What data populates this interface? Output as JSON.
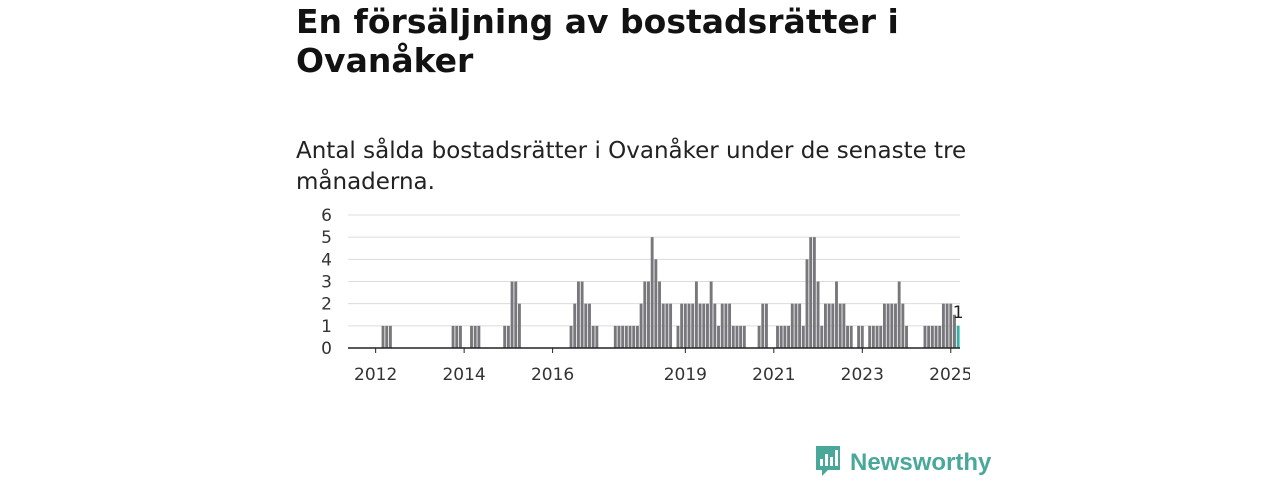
{
  "title": "En försäljning av bostadsrätter i Ovanåker",
  "subtitle": "Antal sålda bostadsrätter i Ovanåker under de senaste tre månaderna.",
  "brand": {
    "name": "Newsworthy",
    "icon": "bar-chart-speech-bubble-icon",
    "color": "#4aa89b"
  },
  "chart_data": {
    "type": "bar",
    "title": "Antal sålda bostadsrätter i Ovanåker under de senaste tre månaderna.",
    "xlabel": "",
    "ylabel": "",
    "ylim": [
      0,
      6
    ],
    "yticks": [
      "0",
      "1",
      "2",
      "3",
      "4",
      "5",
      "6"
    ],
    "xticks": [
      {
        "label": "2012",
        "month_index": 7
      },
      {
        "label": "2014",
        "month_index": 31
      },
      {
        "label": "2016",
        "month_index": 55
      },
      {
        "label": "2019",
        "month_index": 91
      },
      {
        "label": "2021",
        "month_index": 115
      },
      {
        "label": "2023",
        "month_index": 139
      },
      {
        "label": "2025",
        "month_index": 163
      }
    ],
    "x_start": "2011-05",
    "x_end": "2025-03",
    "grid": true,
    "bar_color": "#77777c",
    "highlight_color": "#36b3a8",
    "highlight_label": "1",
    "values": [
      0,
      0,
      0,
      0,
      0,
      0,
      0,
      0,
      0,
      1,
      1,
      1,
      0,
      0,
      0,
      0,
      0,
      0,
      0,
      0,
      0,
      0,
      0,
      0,
      0,
      0,
      0,
      0,
      1,
      1,
      1,
      0,
      0,
      1,
      1,
      1,
      0,
      0,
      0,
      0,
      0,
      0,
      1,
      1,
      3,
      3,
      2,
      0,
      0,
      0,
      0,
      0,
      0,
      0,
      0,
      0,
      0,
      0,
      0,
      0,
      1,
      2,
      3,
      3,
      2,
      2,
      1,
      1,
      0,
      0,
      0,
      0,
      1,
      1,
      1,
      1,
      1,
      1,
      1,
      2,
      3,
      3,
      5,
      4,
      3,
      2,
      2,
      2,
      0,
      1,
      2,
      2,
      2,
      2,
      3,
      2,
      2,
      2,
      3,
      2,
      1,
      2,
      2,
      2,
      1,
      1,
      1,
      1,
      0,
      0,
      0,
      1,
      2,
      2,
      0,
      0,
      1,
      1,
      1,
      1,
      2,
      2,
      2,
      1,
      4,
      5,
      5,
      3,
      1,
      2,
      2,
      2,
      3,
      2,
      2,
      1,
      1,
      0,
      1,
      1,
      0,
      1,
      1,
      1,
      1,
      2,
      2,
      2,
      2,
      3,
      2,
      1,
      0,
      0,
      0,
      0,
      1,
      1,
      1,
      1,
      1,
      2,
      2,
      2,
      1.5,
      1
    ]
  }
}
